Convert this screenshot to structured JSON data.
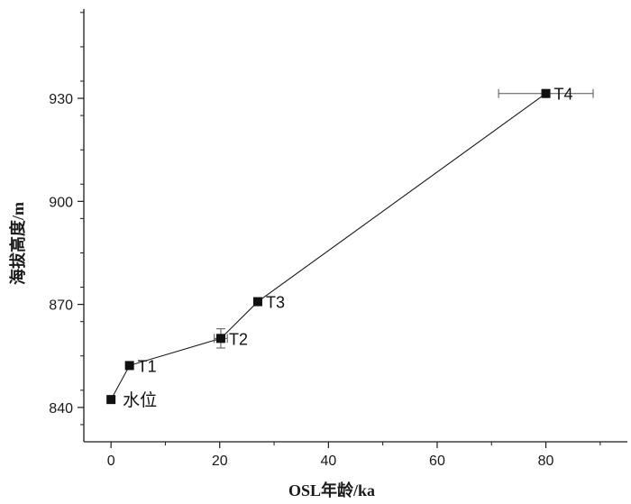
{
  "chart_data": {
    "type": "line",
    "xlabel": "OSL年龄/ka",
    "ylabel": "海拔高度/m",
    "xlim": [
      -5,
      95
    ],
    "ylim": [
      830,
      956
    ],
    "x_ticks": [
      0,
      20,
      40,
      60,
      80
    ],
    "x_tick_labels": [
      "0",
      "20",
      "40",
      "60",
      "80"
    ],
    "y_ticks": [
      840,
      870,
      900,
      930
    ],
    "y_tick_labels": [
      "840",
      "870",
      "900",
      "930"
    ],
    "grid": false,
    "series": [
      {
        "points": [
          {
            "x": 0.0,
            "y": 842.3,
            "label": "水位",
            "xerr": 0,
            "yerr": 0
          },
          {
            "x": 3.4,
            "y": 852.2,
            "label": "T1",
            "xerr": 0,
            "yerr": 0
          },
          {
            "x": 20.2,
            "y": 860.1,
            "label": "T2",
            "xerr": 1.2,
            "yerr": 2.8
          },
          {
            "x": 27.0,
            "y": 870.8,
            "label": "T3",
            "xerr": 0.7,
            "yerr": 0
          },
          {
            "x": 80.0,
            "y": 931.4,
            "label": "T4",
            "xerr": 8.7,
            "yerr": 0
          }
        ]
      }
    ]
  },
  "colors": {
    "line": "#1a1a1a",
    "marker": "#111111",
    "errorbar": "#555555",
    "axis": "#1a1a1a"
  }
}
